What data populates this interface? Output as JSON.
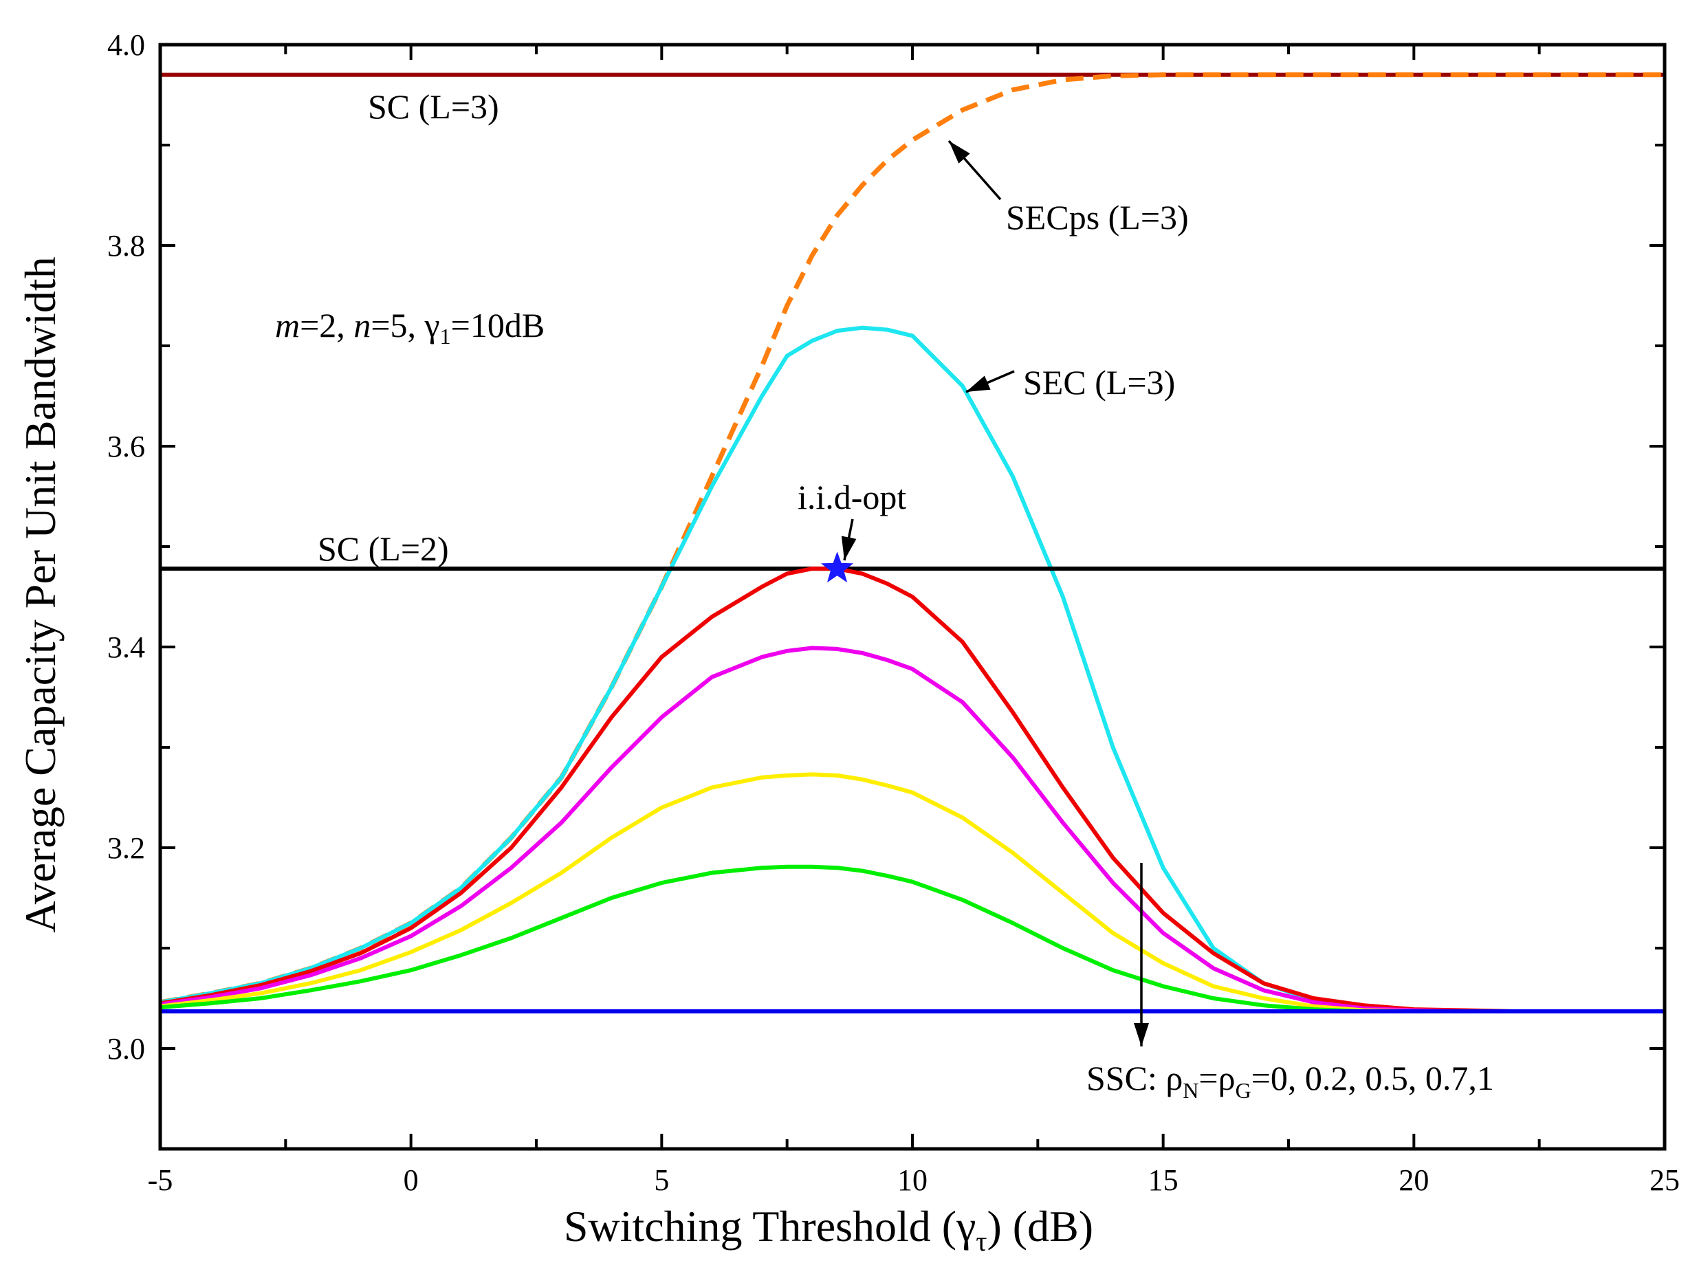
{
  "chart_data": {
    "type": "line",
    "title": "",
    "xlabel": "Switching Threshold",
    "xlabel_symbol": "γ",
    "xlabel_sub": "τ",
    "xlabel_unit": "(dB)",
    "ylabel": "Average Capacity Per Unit Bandwidth",
    "xlim": [
      -5,
      25
    ],
    "ylim": [
      2.9,
      4.0
    ],
    "xticks": [
      -5,
      0,
      5,
      10,
      15,
      20,
      25
    ],
    "yticks": [
      3.0,
      3.2,
      3.4,
      3.6,
      3.8,
      4.0
    ],
    "ytick_labels": [
      "3.0",
      "3.2",
      "3.4",
      "3.6",
      "3.8",
      "4.0"
    ],
    "x": [
      -5,
      -4,
      -3,
      -2,
      -1,
      0,
      1,
      2,
      3,
      4,
      5,
      6,
      7,
      7.5,
      8,
      8.5,
      9,
      9.5,
      10,
      11,
      12,
      13,
      14,
      15,
      16,
      17,
      18,
      19,
      20,
      21,
      22,
      23,
      24,
      25
    ],
    "series": [
      {
        "name": "SC (L=3)",
        "color": "#9b0000",
        "style": "solid",
        "values": [
          3.97,
          3.97,
          3.97,
          3.97,
          3.97,
          3.97,
          3.97,
          3.97,
          3.97,
          3.97,
          3.97,
          3.97,
          3.97,
          3.97,
          3.97,
          3.97,
          3.97,
          3.97,
          3.97,
          3.97,
          3.97,
          3.97,
          3.97,
          3.97,
          3.97,
          3.97,
          3.97,
          3.97,
          3.97,
          3.97,
          3.97,
          3.97,
          3.97,
          3.97
        ]
      },
      {
        "name": "SECps (L=3)",
        "color": "#ff7f0e",
        "style": "dashed",
        "values": [
          3.046,
          3.055,
          3.065,
          3.08,
          3.1,
          3.125,
          3.16,
          3.21,
          3.27,
          3.36,
          3.46,
          3.57,
          3.68,
          3.74,
          3.79,
          3.83,
          3.86,
          3.885,
          3.905,
          3.935,
          3.955,
          3.965,
          3.969,
          3.97,
          3.97,
          3.97,
          3.97,
          3.97,
          3.97,
          3.97,
          3.97,
          3.97,
          3.97,
          3.97
        ]
      },
      {
        "name": "SEC (L=3)",
        "color": "#1ee6f0",
        "style": "solid",
        "values": [
          3.046,
          3.055,
          3.065,
          3.08,
          3.1,
          3.125,
          3.16,
          3.21,
          3.27,
          3.36,
          3.46,
          3.56,
          3.65,
          3.69,
          3.705,
          3.715,
          3.718,
          3.716,
          3.71,
          3.66,
          3.57,
          3.45,
          3.3,
          3.18,
          3.1,
          3.065,
          3.048,
          3.041,
          3.038,
          3.037,
          3.037,
          3.037,
          3.037,
          3.037
        ]
      },
      {
        "name": "SC (L=2)",
        "color": "#000000",
        "style": "solid",
        "values": [
          3.478,
          3.478,
          3.478,
          3.478,
          3.478,
          3.478,
          3.478,
          3.478,
          3.478,
          3.478,
          3.478,
          3.478,
          3.478,
          3.478,
          3.478,
          3.478,
          3.478,
          3.478,
          3.478,
          3.478,
          3.478,
          3.478,
          3.478,
          3.478,
          3.478,
          3.478,
          3.478,
          3.478,
          3.478,
          3.478,
          3.478,
          3.478,
          3.478,
          3.478
        ]
      },
      {
        "name": "SSC ρ=0",
        "color": "#ee0000",
        "style": "solid",
        "values": [
          3.045,
          3.053,
          3.063,
          3.077,
          3.095,
          3.12,
          3.155,
          3.2,
          3.26,
          3.33,
          3.39,
          3.43,
          3.46,
          3.473,
          3.478,
          3.478,
          3.473,
          3.463,
          3.45,
          3.405,
          3.335,
          3.26,
          3.19,
          3.135,
          3.095,
          3.065,
          3.05,
          3.043,
          3.039,
          3.038,
          3.037,
          3.037,
          3.037,
          3.037
        ]
      },
      {
        "name": "SSC ρ=0.2",
        "color": "#ee00ee",
        "style": "solid",
        "values": [
          3.044,
          3.051,
          3.06,
          3.073,
          3.09,
          3.112,
          3.142,
          3.18,
          3.225,
          3.28,
          3.33,
          3.37,
          3.39,
          3.396,
          3.399,
          3.398,
          3.394,
          3.387,
          3.378,
          3.345,
          3.29,
          3.225,
          3.165,
          3.115,
          3.08,
          3.058,
          3.046,
          3.04,
          3.038,
          3.037,
          3.037,
          3.037,
          3.037,
          3.037
        ]
      },
      {
        "name": "SSC ρ=0.5",
        "color": "#ffee00",
        "style": "solid",
        "values": [
          3.042,
          3.048,
          3.055,
          3.065,
          3.078,
          3.096,
          3.118,
          3.145,
          3.175,
          3.21,
          3.24,
          3.26,
          3.27,
          3.272,
          3.273,
          3.272,
          3.268,
          3.262,
          3.255,
          3.23,
          3.195,
          3.155,
          3.115,
          3.085,
          3.062,
          3.05,
          3.042,
          3.038,
          3.037,
          3.037,
          3.037,
          3.037,
          3.037,
          3.037
        ]
      },
      {
        "name": "SSC ρ=0.7",
        "color": "#00ee00",
        "style": "solid",
        "values": [
          3.041,
          3.045,
          3.05,
          3.058,
          3.067,
          3.078,
          3.093,
          3.11,
          3.13,
          3.15,
          3.165,
          3.175,
          3.18,
          3.181,
          3.181,
          3.18,
          3.177,
          3.172,
          3.166,
          3.148,
          3.125,
          3.1,
          3.078,
          3.062,
          3.05,
          3.043,
          3.039,
          3.037,
          3.037,
          3.037,
          3.037,
          3.037,
          3.037,
          3.037
        ]
      },
      {
        "name": "SSC ρ=1",
        "color": "#0000ee",
        "style": "solid",
        "values": [
          3.037,
          3.037,
          3.037,
          3.037,
          3.037,
          3.037,
          3.037,
          3.037,
          3.037,
          3.037,
          3.037,
          3.037,
          3.037,
          3.037,
          3.037,
          3.037,
          3.037,
          3.037,
          3.037,
          3.037,
          3.037,
          3.037,
          3.037,
          3.037,
          3.037,
          3.037,
          3.037,
          3.037,
          3.037,
          3.037,
          3.037,
          3.037,
          3.037,
          3.037
        ]
      }
    ],
    "optimum_point": {
      "label": "i.i.d-opt",
      "x": 8.5,
      "y": 3.478,
      "color": "#1a1aff"
    },
    "annotations": {
      "sc3": "SC (L=3)",
      "secps": "SECps (L=3)",
      "sec": "SEC (L=3)",
      "sc2": "SC (L=2)",
      "params_pre": "m=2, n=5,",
      "params_gamma": "γ",
      "params_gamma_sub": "1",
      "params_post": "=10dB",
      "ssc_prefix": "SSC: ρ",
      "ssc_sub1": "N",
      "ssc_mid": "=ρ",
      "ssc_sub2": "G",
      "ssc_values": "=0, 0.2, 0.5, 0.7,1"
    }
  }
}
